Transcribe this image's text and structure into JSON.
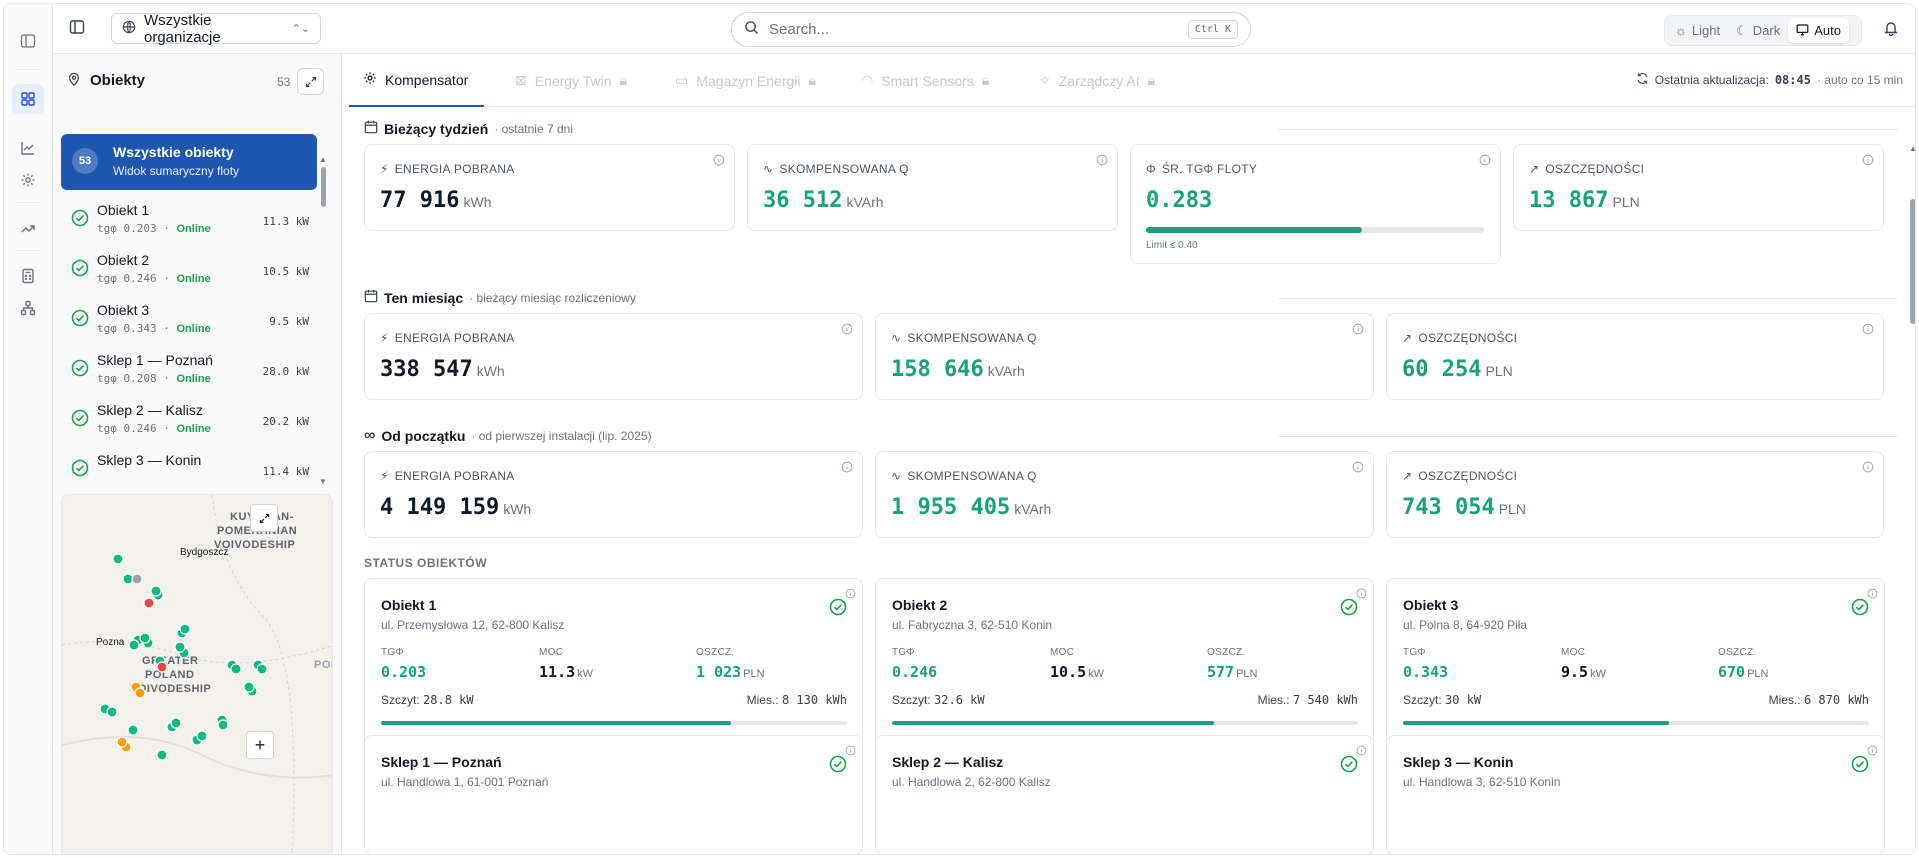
{
  "topbar": {
    "org_selector": "Wszystkie organizacje",
    "search_placeholder": "Search...",
    "search_shortcut": "Ctrl K",
    "theme": {
      "light": "Light",
      "dark": "Dark",
      "auto": "Auto",
      "selected": "Auto"
    }
  },
  "sidebar": {
    "title": "Obiekty",
    "count": "53",
    "all": {
      "badge": "53",
      "title": "Wszystkie obiekty",
      "subtitle": "Widok sumaryczny floty"
    },
    "items": [
      {
        "name": "Obiekt 1",
        "tg": "tgφ 0.203",
        "status": "Online",
        "power": "11.3 kW"
      },
      {
        "name": "Obiekt 2",
        "tg": "tgφ 0.246",
        "status": "Online",
        "power": "10.5 kW"
      },
      {
        "name": "Obiekt 3",
        "tg": "tgφ 0.343",
        "status": "Online",
        "power": "9.5 kW"
      },
      {
        "name": "Sklep 1 — Poznań",
        "tg": "tgφ 0.208",
        "status": "Online",
        "power": "28.0 kW"
      },
      {
        "name": "Sklep 2 — Kalisz",
        "tg": "tgφ 0.246",
        "status": "Online",
        "power": "20.2 kW"
      },
      {
        "name": "Sklep 3 — Konin",
        "tg": "",
        "status": "",
        "power": "11.4 kW"
      }
    ]
  },
  "map": {
    "region1": "KUYAVIAN-",
    "region2": "POMERANIAN",
    "region3": "VOIVODESHIP",
    "region4": "GREATER",
    "region5": "POLAND",
    "region6": "VOIVODESHIP",
    "city1": "Bydgoszcz",
    "city2": "Pozna",
    "edge": "POI",
    "zoom_in": "+",
    "marker_colors": {
      "ok": "#10b981",
      "warn": "#f59e0b",
      "error": "#ef4444",
      "offline": "#9ca3af"
    }
  },
  "tabs": [
    {
      "label": "Kompensator",
      "active": true
    },
    {
      "label": "Energy Twin",
      "locked": true
    },
    {
      "label": "Magazyn Energii",
      "locked": true
    },
    {
      "label": "Smart Sensors",
      "locked": true
    },
    {
      "label": "Zarządczy AI",
      "locked": true
    }
  ],
  "update": {
    "label": "Ostatnia aktualizacja:",
    "time": "08:45",
    "interval": "· auto co 15 min"
  },
  "week": {
    "title": "Bieżący tydzień",
    "subtitle": "· ostatnie 7 dni",
    "kpis": [
      {
        "label": "ENERGIA POBRANA",
        "value": "77 916",
        "unit": "kWh"
      },
      {
        "label": "SKOMPENSOWANA Q",
        "value": "36 512",
        "unit": "kVArh"
      },
      {
        "label": "ŚR. TGΦ FLOTY",
        "value": "0.283",
        "unit": "",
        "bar_fraction": 0.64,
        "limit": "Limit ≤ 0.40"
      },
      {
        "label": "OSZCZĘDNOŚCI",
        "value": "13 867",
        "unit": "PLN"
      }
    ]
  },
  "month": {
    "title": "Ten miesiąc",
    "subtitle": "· bieżący miesiąc rozliczeniowy",
    "kpis": [
      {
        "label": "ENERGIA POBRANA",
        "value": "338 547",
        "unit": "kWh"
      },
      {
        "label": "SKOMPENSOWANA Q",
        "value": "158 646",
        "unit": "kVArh"
      },
      {
        "label": "OSZCZĘDNOŚCI",
        "value": "60 254",
        "unit": "PLN"
      }
    ]
  },
  "total": {
    "title": "Od początku",
    "subtitle": "· od pierwszej instalacji (lip. 2025)",
    "kpis": [
      {
        "label": "ENERGIA POBRANA",
        "value": "4 149 159",
        "unit": "kWh"
      },
      {
        "label": "SKOMPENSOWANA Q",
        "value": "1 955 405",
        "unit": "kVArh"
      },
      {
        "label": "OSZCZĘDNOŚCI",
        "value": "743 054",
        "unit": "PLN"
      }
    ]
  },
  "status": {
    "title": "STATUS OBIEKTÓW",
    "metric_labels": {
      "tg": "TGΦ",
      "power": "MOC",
      "savings": "OSZCZ."
    },
    "power_unit": "kW",
    "savings_unit": "PLN",
    "peak_label": "Szczyt:",
    "month_label": "Mies.:",
    "scale": {
      "left": "0.80",
      "mid": "0.40",
      "right": "0.00"
    },
    "cards": [
      {
        "name": "Obiekt 1",
        "address": "ul. Przemysłowa 12, 62-800 Kalisz",
        "tg": "0.203",
        "power": "11.3",
        "savings": "1 023",
        "peak": "28.8 kW",
        "month": "8 130 kWh",
        "fill": 0.75
      },
      {
        "name": "Obiekt 2",
        "address": "ul. Fabryczna 3, 62-510 Konin",
        "tg": "0.246",
        "power": "10.5",
        "savings": "577",
        "peak": "32.6 kW",
        "month": "7 540 kWh",
        "fill": 0.69
      },
      {
        "name": "Obiekt 3",
        "address": "ul. Polna 8, 64-920 Piła",
        "tg": "0.343",
        "power": "9.5",
        "savings": "670",
        "peak": "30 kW",
        "month": "6 870 kWh",
        "fill": 0.57
      },
      {
        "name": "Sklep 1 — Poznań",
        "address": "ul. Handlowa 1, 61-001 Poznań"
      },
      {
        "name": "Sklep 2 — Kalisz",
        "address": "ul. Handlowa 2, 62-800 Kalisz"
      },
      {
        "name": "Sklep 3 — Konin",
        "address": "ul. Handlowa 3, 62-510 Konin"
      }
    ]
  }
}
